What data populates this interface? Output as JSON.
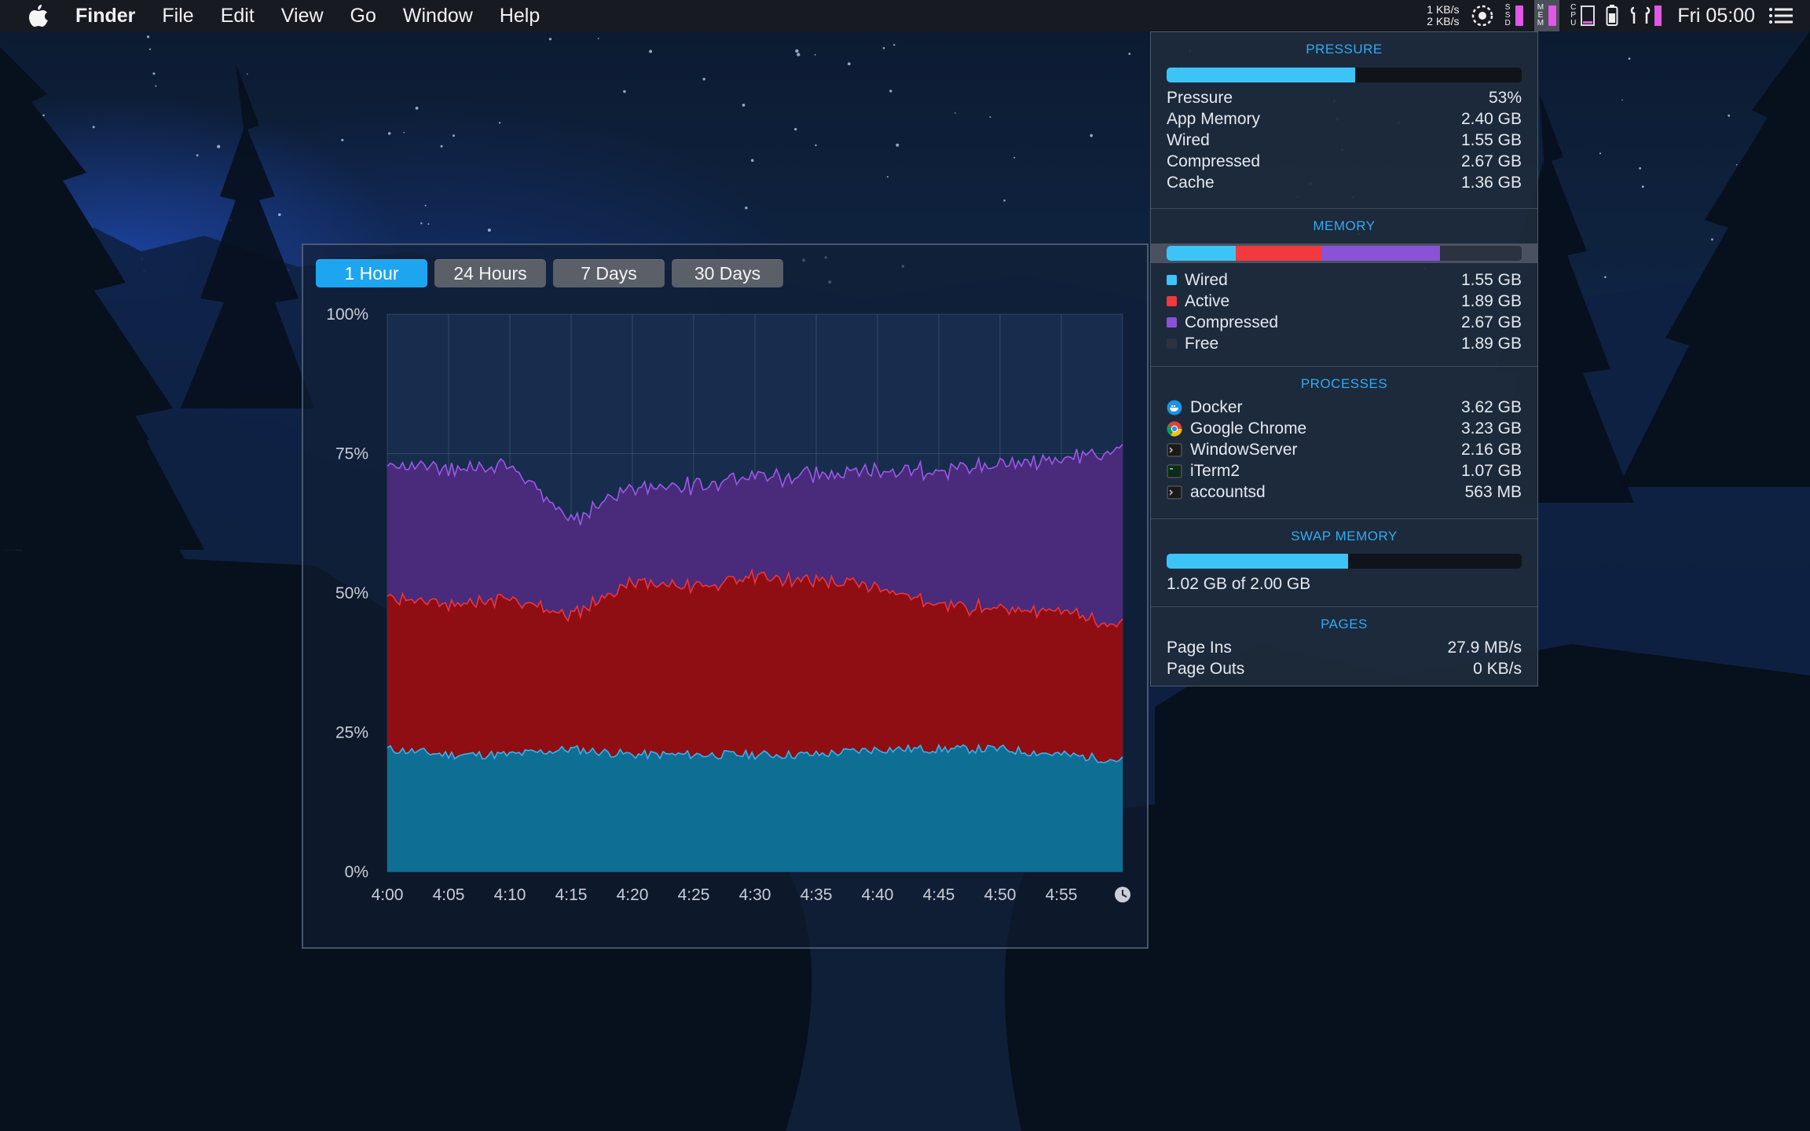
{
  "menubar": {
    "app_name": "Finder",
    "menus": [
      "File",
      "Edit",
      "View",
      "Go",
      "Window",
      "Help"
    ],
    "net_up": "1 KB/s",
    "net_down": "2 KB/s",
    "ssd_label": [
      "S",
      "S",
      "D"
    ],
    "mem_label": [
      "M",
      "E",
      "M"
    ],
    "cpu_label": [
      "C",
      "P",
      "U"
    ],
    "clock": "Fri 05:00",
    "icons": [
      "apple-icon",
      "network-speed",
      "fan-icon",
      "ssd-meter",
      "memory-meter",
      "cpu-meter",
      "gpu-meter",
      "battery-icon",
      "airpods-icon",
      "notification-list-icon"
    ]
  },
  "chart_window": {
    "range_tabs": [
      "1 Hour",
      "24 Hours",
      "7 Days",
      "30 Days"
    ],
    "active_tab": 0,
    "clock_icon": "clock-icon"
  },
  "chart_data": {
    "type": "area",
    "stacked": true,
    "x": [
      "4:00",
      "4:05",
      "4:10",
      "4:15",
      "4:20",
      "4:25",
      "4:30",
      "4:35",
      "4:40",
      "4:45",
      "4:50",
      "4:55",
      "5:00"
    ],
    "x_tick_labels": [
      "4:00",
      "4:05",
      "4:10",
      "4:15",
      "4:20",
      "4:25",
      "4:30",
      "4:35",
      "4:40",
      "4:45",
      "4:50",
      "4:55"
    ],
    "y_tick_labels": [
      "100%",
      "75%",
      "50%",
      "25%",
      "0%"
    ],
    "ylim": [
      0,
      100
    ],
    "grid": true,
    "series": [
      {
        "key": "wired",
        "color": "#0f6e93",
        "line": "#33b4ef",
        "values": [
          22,
          21,
          21,
          22,
          21,
          21,
          21,
          21,
          22,
          22,
          22,
          21,
          20
        ]
      },
      {
        "key": "active",
        "color": "#8e0e13",
        "line": "#f0333b",
        "values": [
          27,
          27,
          28,
          24,
          31,
          30,
          32,
          31,
          29,
          26,
          25,
          26,
          24
        ]
      },
      {
        "key": "compressed",
        "color": "#4a2a7a",
        "line": "#9a5ae8",
        "values": [
          24,
          24,
          24,
          17,
          17,
          18,
          18,
          19,
          21,
          24,
          26,
          27,
          32
        ]
      }
    ]
  },
  "stats": {
    "pressure": {
      "title": "PRESSURE",
      "bar_fraction": 0.53,
      "rows": [
        {
          "label": "Pressure",
          "value": "53%"
        },
        {
          "label": "App Memory",
          "value": "2.40 GB"
        },
        {
          "label": "Wired",
          "value": "1.55 GB"
        },
        {
          "label": "Compressed",
          "value": "2.67 GB"
        },
        {
          "label": "Cache",
          "value": "1.36 GB"
        }
      ]
    },
    "memory": {
      "title": "MEMORY",
      "segments": [
        {
          "label": "Wired",
          "value": "1.55 GB",
          "fraction": 0.195,
          "color": "#3cc4f7"
        },
        {
          "label": "Active",
          "value": "1.89 GB",
          "fraction": 0.24,
          "color": "#f2393d"
        },
        {
          "label": "Compressed",
          "value": "2.67 GB",
          "fraction": 0.335,
          "color": "#8a52d6"
        },
        {
          "label": "Free",
          "value": "1.89 GB",
          "fraction": 0.23,
          "color": "#2b3240"
        }
      ]
    },
    "processes": {
      "title": "PROCESSES",
      "items": [
        {
          "name": "Docker",
          "value": "3.62 GB",
          "icon": "docker-icon"
        },
        {
          "name": "Google Chrome",
          "value": "3.23 GB",
          "icon": "chrome-icon"
        },
        {
          "name": "WindowServer",
          "value": "2.16 GB",
          "icon": "terminal-icon"
        },
        {
          "name": "iTerm2",
          "value": "1.07 GB",
          "icon": "iterm-icon"
        },
        {
          "name": "accountsd",
          "value": "563 MB",
          "icon": "terminal-icon"
        }
      ]
    },
    "swap": {
      "title": "SWAP MEMORY",
      "bar_fraction": 0.51,
      "text": "1.02 GB of 2.00 GB"
    },
    "pages": {
      "title": "PAGES",
      "rows": [
        {
          "label": "Page Ins",
          "value": "27.9 MB/s"
        },
        {
          "label": "Page Outs",
          "value": "0 KB/s"
        }
      ]
    }
  }
}
